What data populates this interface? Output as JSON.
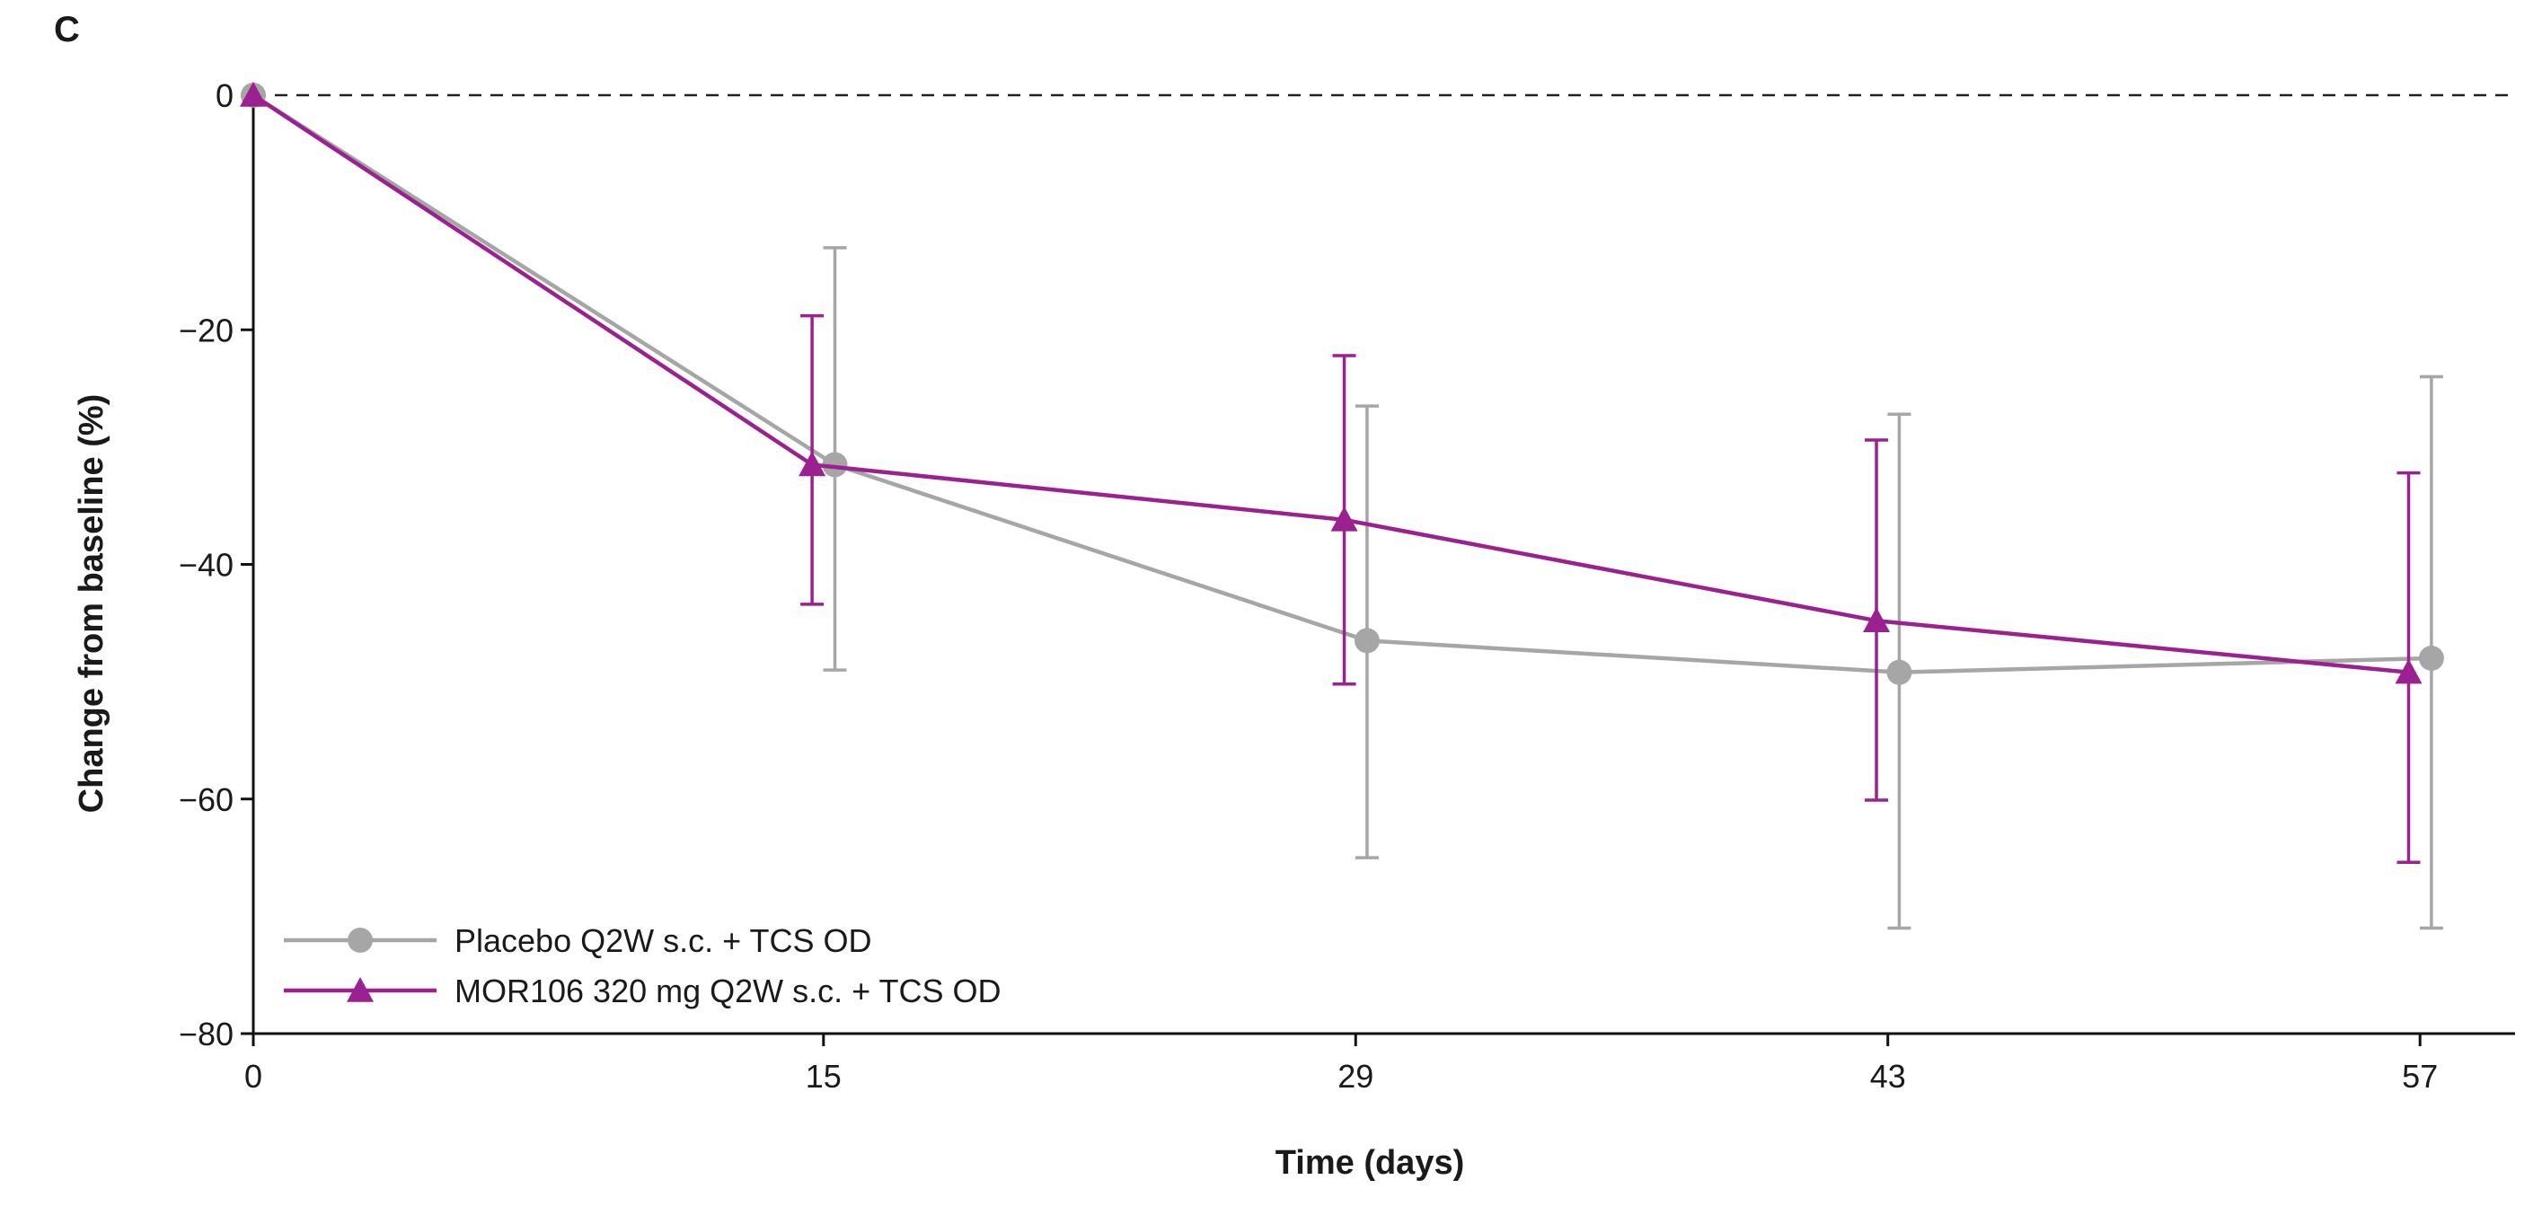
{
  "chart_data": {
    "type": "line",
    "panel_label": "C",
    "title": "",
    "xlabel": "Time (days)",
    "ylabel": "Change from baseline (%)",
    "x": [
      0,
      15,
      29,
      43,
      57
    ],
    "x_tick_labels": [
      "0",
      "15",
      "29",
      "43",
      "57"
    ],
    "xlim": [
      0,
      59.5
    ],
    "ylim": [
      -80,
      0
    ],
    "y_ticks": [
      0,
      -20,
      -40,
      -60,
      -80
    ],
    "y_tick_labels": [
      "0",
      "−20",
      "−40",
      "−60",
      "−80"
    ],
    "reference_line": {
      "y": 0,
      "style": "dashed"
    },
    "legend_position": "bottom-left",
    "series": [
      {
        "name": "Placebo Q2W s.c. + TCS OD",
        "marker": "circle",
        "color": "#a6a6a6",
        "x": [
          0,
          15.3,
          29.3,
          43.3,
          57.3
        ],
        "values": [
          0,
          -31.5,
          -46.5,
          -49.2,
          -48.0
        ],
        "error_upper": [
          0,
          -13,
          -26.5,
          -27.2,
          -24
        ],
        "error_lower": [
          0,
          -49,
          -65,
          -71,
          -71
        ]
      },
      {
        "name": "MOR106 320 mg Q2W s.c. + TCS OD",
        "marker": "triangle",
        "color": "#9b2090",
        "x": [
          0,
          14.7,
          28.7,
          42.7,
          56.7
        ],
        "values": [
          0,
          -31.5,
          -36.2,
          -44.8,
          -49.2
        ],
        "error_upper": [
          0,
          -18.8,
          -22.2,
          -29.4,
          -32.2
        ],
        "error_lower": [
          0,
          -43.4,
          -50.2,
          -60.1,
          -65.4
        ]
      }
    ]
  }
}
